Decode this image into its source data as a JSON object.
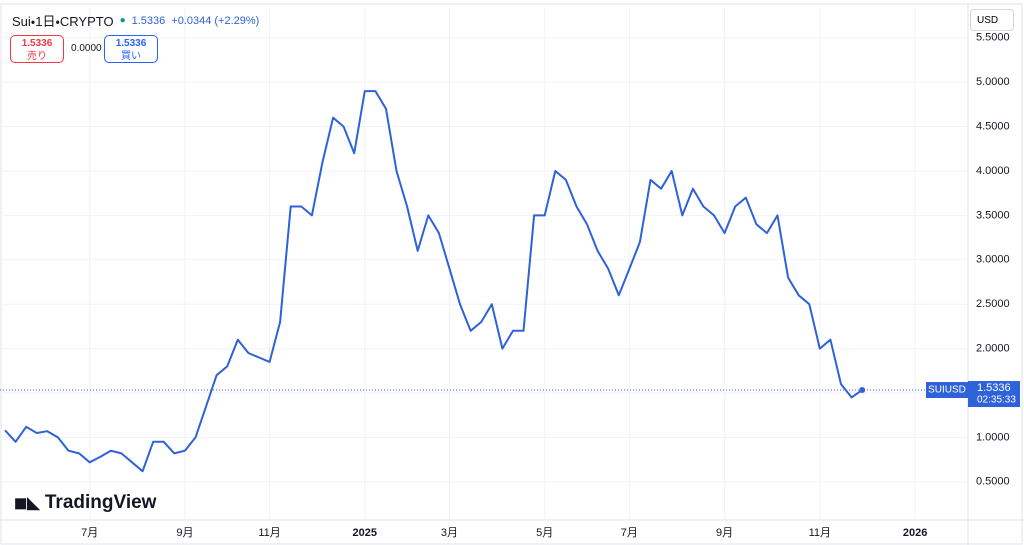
{
  "header": {
    "symbol": "Sui・1日・CRYPTO",
    "change": "+0.0344 (+2.29%)",
    "sell": "売り",
    "spread": "0.0000",
    "buy": "買い",
    "currency": "USD",
    "countdown": "02:35:33",
    "logo": "TradingView"
  },
  "chart_data": {
    "type": "line",
    "series_name": "SUIUSD",
    "last_price": 1.5336,
    "color": "#2e62d9",
    "categories": [
      null,
      null,
      null,
      null,
      null,
      null,
      null,
      null,
      "7月",
      null,
      null,
      null,
      null,
      null,
      null,
      null,
      null,
      "9月",
      null,
      null,
      null,
      null,
      null,
      null,
      null,
      "11月",
      null,
      null,
      null,
      null,
      null,
      null,
      null,
      null,
      "2025",
      null,
      null,
      null,
      null,
      null,
      null,
      null,
      "3月",
      null,
      null,
      null,
      null,
      null,
      null,
      null,
      null,
      "5月",
      null,
      null,
      null,
      null,
      null,
      null,
      null,
      "7月",
      null,
      null,
      null,
      null,
      null,
      null,
      null,
      null,
      "9月",
      null,
      null,
      null,
      null,
      null,
      null,
      null,
      null,
      "11月",
      null,
      null,
      null,
      null,
      null,
      null,
      null,
      null,
      "2026",
      null,
      null,
      null,
      null,
      null
    ],
    "values": [
      1.08,
      0.95,
      1.12,
      1.05,
      1.07,
      1.0,
      0.85,
      0.82,
      0.72,
      0.78,
      0.85,
      0.82,
      0.72,
      0.62,
      0.95,
      0.95,
      0.82,
      0.85,
      1.0,
      1.35,
      1.7,
      1.8,
      2.1,
      1.95,
      1.9,
      1.85,
      2.3,
      3.6,
      3.6,
      3.5,
      4.1,
      4.6,
      4.5,
      4.2,
      4.9,
      4.9,
      4.7,
      4.0,
      3.6,
      3.1,
      3.5,
      3.3,
      2.9,
      2.5,
      2.2,
      2.3,
      2.5,
      2.0,
      2.2,
      2.2,
      3.5,
      3.5,
      4.0,
      3.9,
      3.6,
      3.4,
      3.1,
      2.9,
      2.6,
      2.9,
      3.2,
      3.9,
      3.8,
      4.0,
      3.5,
      3.8,
      3.6,
      3.5,
      3.3,
      3.6,
      3.7,
      3.4,
      3.3,
      3.5,
      2.8,
      2.6,
      2.5,
      2.0,
      2.1,
      1.6,
      1.45,
      1.5336,
      null,
      null,
      null,
      null,
      null,
      null,
      null,
      null,
      null,
      null
    ],
    "ylim": [
      0.07,
      5.61
    ],
    "yticks": [
      {
        "value": 0.5,
        "label": "0.5000"
      },
      {
        "value": 1,
        "label": "1.0000"
      },
      {
        "value": 1.5,
        "label": "1.5000"
      },
      {
        "value": 2,
        "label": "2.0000"
      },
      {
        "value": 2.5,
        "label": "2.5000"
      },
      {
        "value": 3,
        "label": "3.0000"
      },
      {
        "value": 3.5,
        "label": "3.5000"
      },
      {
        "value": 4,
        "label": "4.0000"
      },
      {
        "value": 4.5,
        "label": "4.5000"
      },
      {
        "value": 5,
        "label": "5.0000"
      },
      {
        "value": 5.5,
        "label": "5.5000"
      }
    ],
    "grid": true
  }
}
